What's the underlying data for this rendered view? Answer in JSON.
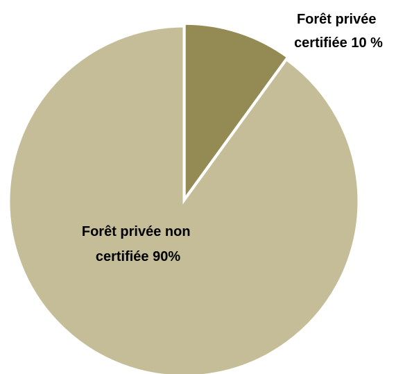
{
  "chart_data": {
    "type": "pie",
    "title": "",
    "slices": [
      {
        "label_lines": [
          "Forêt privée",
          "certifiée 10 %"
        ],
        "value": 10,
        "color": "#948A54",
        "exploded": true
      },
      {
        "label_lines": [
          "Forêt privée non",
          "certifiée 90%"
        ],
        "value": 90,
        "color": "#C4BD97",
        "exploded": false
      }
    ],
    "start_angle_deg": 0,
    "direction": "clockwise",
    "legend": "none",
    "slice_border_color": "#FFFFFF"
  }
}
